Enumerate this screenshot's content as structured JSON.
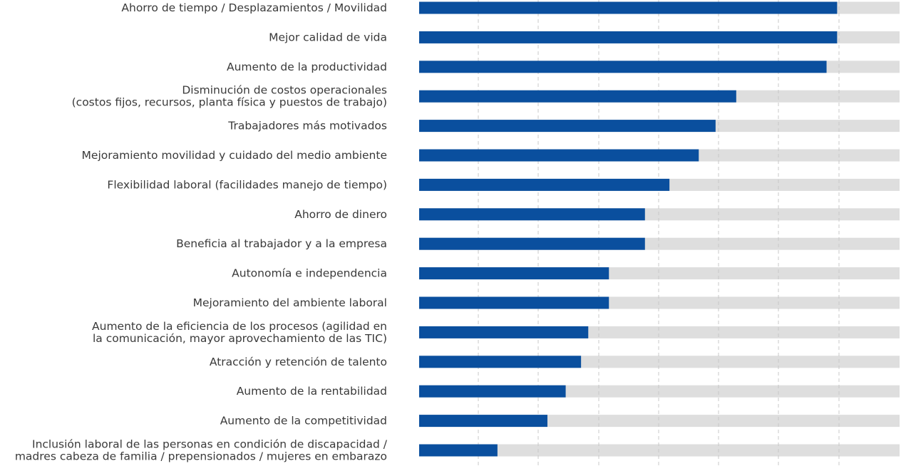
{
  "chart_data": {
    "type": "bar",
    "orientation": "horizontal",
    "title": "",
    "xlabel": "",
    "ylabel": "",
    "xlim": [
      0,
      100
    ],
    "grid": true,
    "legend": "none",
    "colors": {
      "bar": "#0a4f9e",
      "track": "#dedede",
      "grid": "#c8c8c8",
      "text": "#3a3a3a"
    },
    "categories": [
      [
        "Ahorro de tiempo / Desplazamientos / Movilidad"
      ],
      [
        "Mejor calidad de vida"
      ],
      [
        "Aumento de la productividad"
      ],
      [
        "Disminución de costos operacionales",
        "(costos fijos, recursos, planta física y puestos de trabajo)"
      ],
      [
        "Trabajadores más motivados"
      ],
      [
        "Mejoramiento movilidad y cuidado del medio ambiente"
      ],
      [
        "Flexibilidad laboral (facilidades manejo de tiempo)"
      ],
      [
        "Ahorro de dinero"
      ],
      [
        "Beneficia al trabajador y a la empresa"
      ],
      [
        "Autonomía e independencia"
      ],
      [
        "Mejoramiento del ambiente laboral"
      ],
      [
        "Aumento de la eficiencia de los procesos (agilidad en",
        "la comunicación, mayor aprovechamiento de las TIC)"
      ],
      [
        "Atracción y retención de talento"
      ],
      [
        "Aumento de la rentabilidad"
      ],
      [
        "Aumento de la competitividad"
      ],
      [
        "Inclusión laboral de las personas en condición de discapacidad /",
        "madres cabeza de familia / prepensionados / mujeres en embarazo"
      ]
    ],
    "values": [
      87,
      87,
      84.8,
      66,
      61.7,
      58.2,
      52.1,
      47,
      47,
      39.5,
      39.5,
      35.2,
      33.7,
      30.5,
      26.7,
      16.3
    ]
  }
}
